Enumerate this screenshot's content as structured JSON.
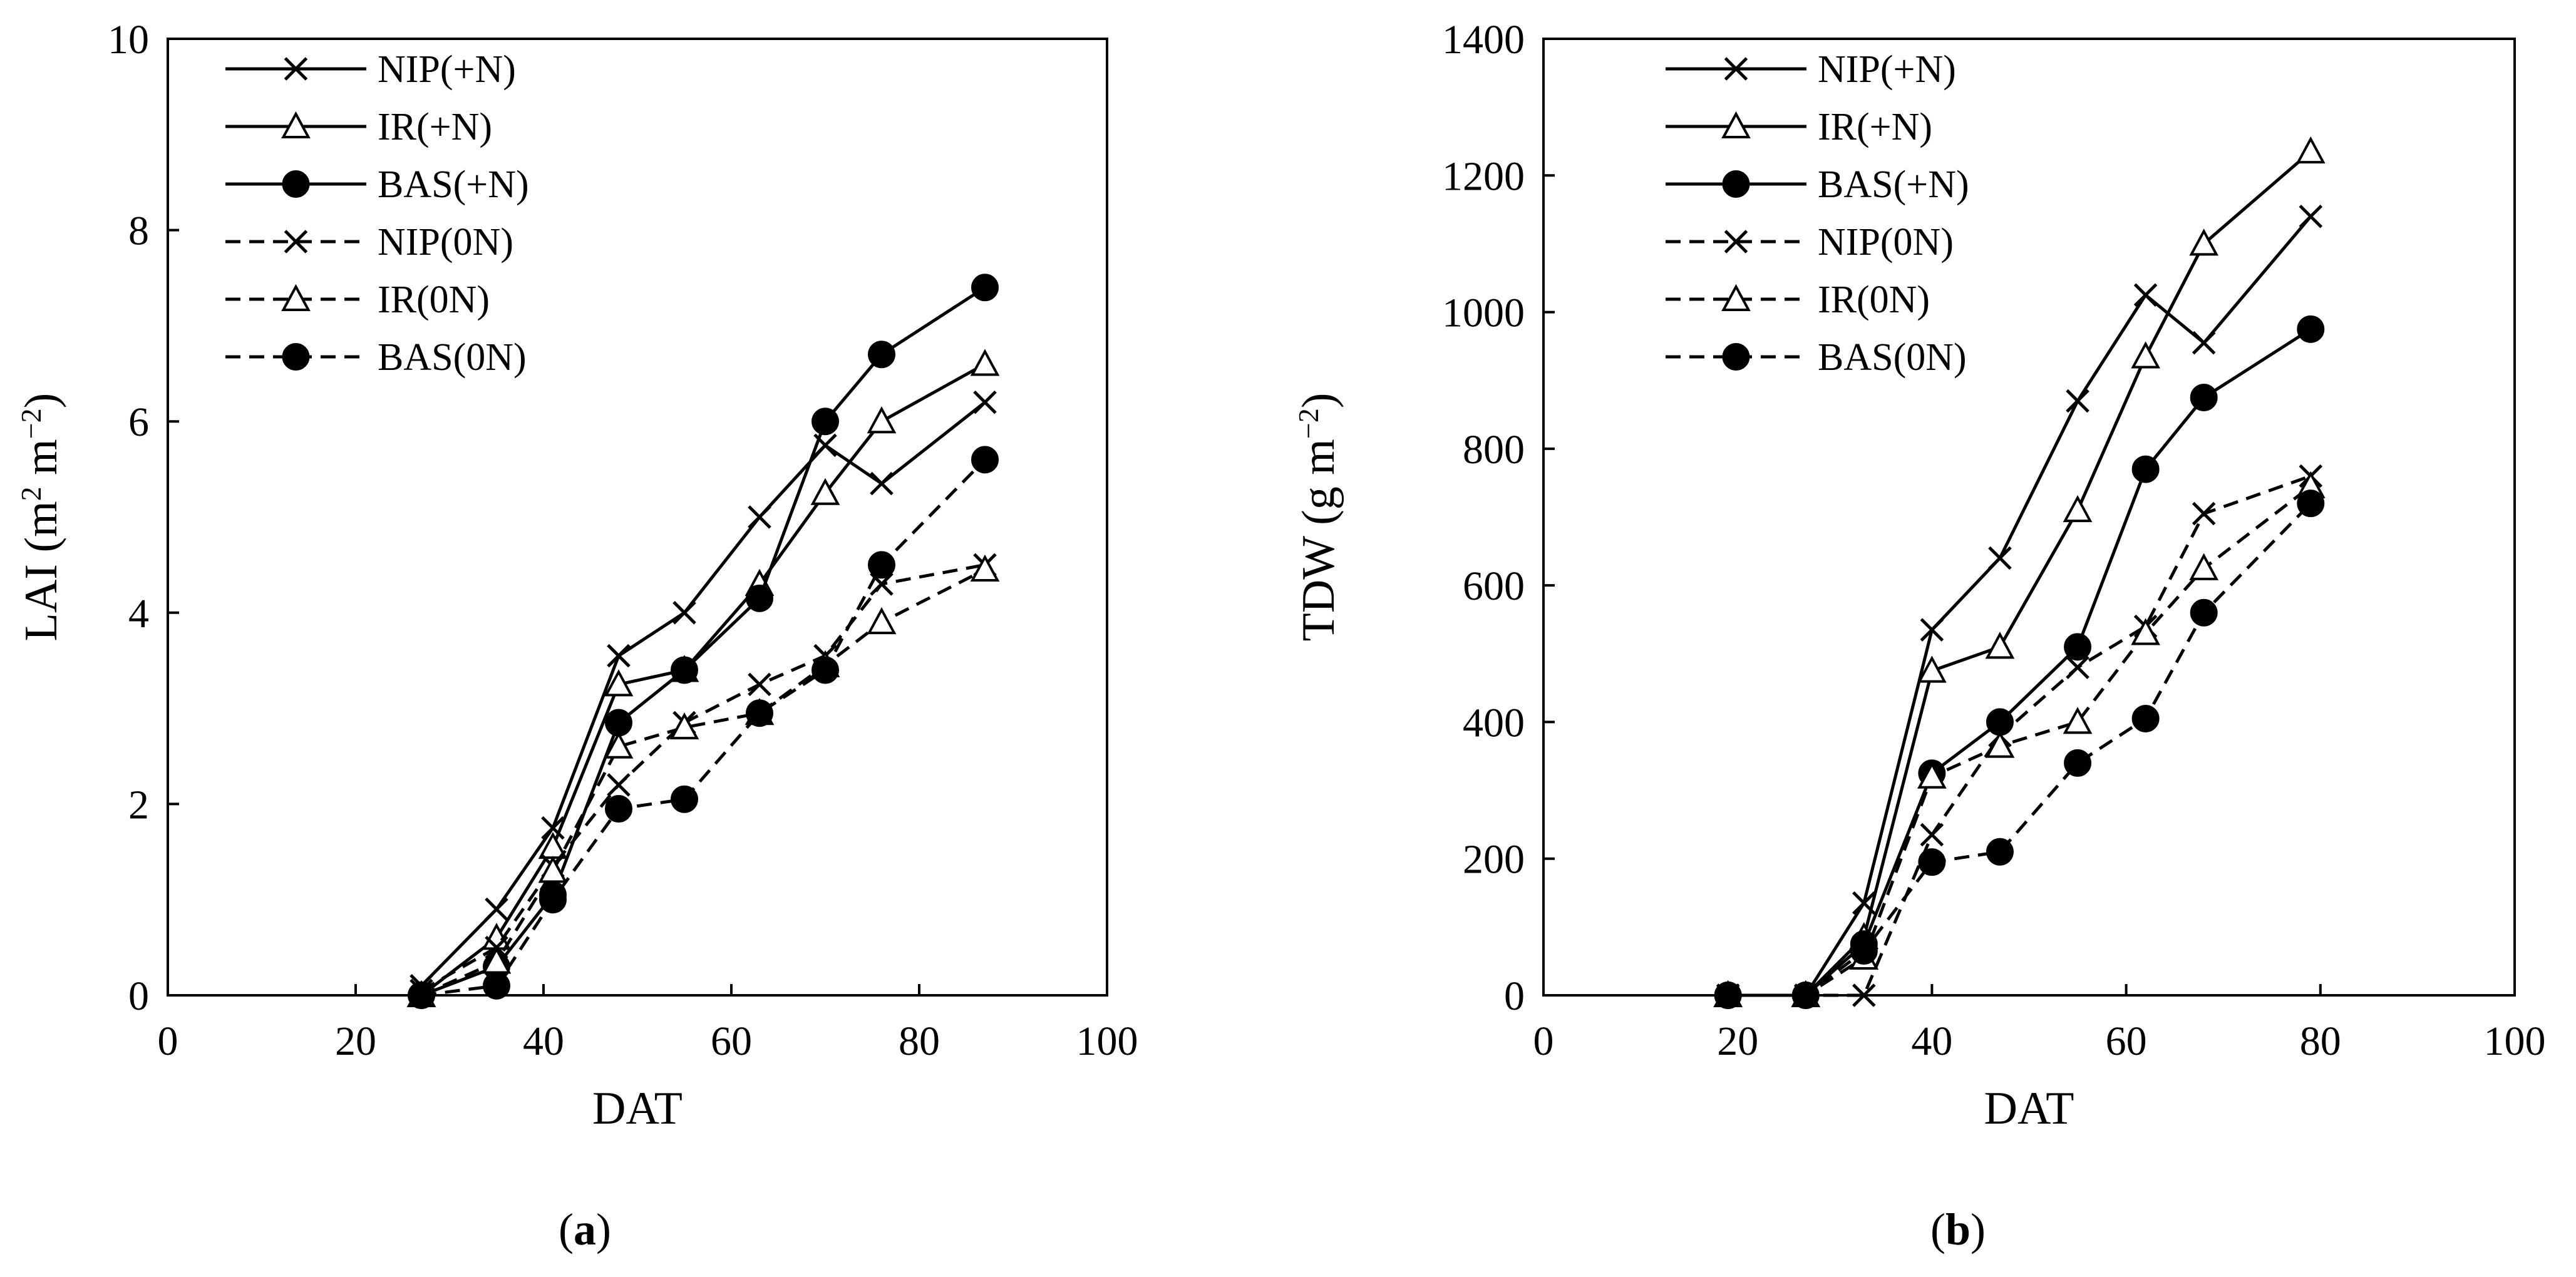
{
  "figure": {
    "panels": [
      {
        "label": "(a)",
        "label_letter": "a"
      },
      {
        "label": "(b)",
        "label_letter": "b"
      }
    ]
  },
  "chart_data": [
    {
      "type": "line",
      "panel": "(a)",
      "title": "",
      "xlabel": "DAT",
      "ylabel": "LAI (m² m⁻²)",
      "ylabel_parts": [
        "LAI (m",
        "2",
        " m",
        "−2",
        ")"
      ],
      "xlim": [
        0,
        100
      ],
      "ylim": [
        0,
        10
      ],
      "xticks": [
        0,
        20,
        40,
        60,
        80,
        100
      ],
      "yticks": [
        0,
        2,
        4,
        6,
        8,
        10
      ],
      "grid": false,
      "legend_position": "top-left",
      "series": [
        {
          "name": "NIP(+N)",
          "marker": "x",
          "dash": "solid",
          "x": [
            27,
            35,
            41,
            48,
            55,
            63,
            70,
            76,
            87
          ],
          "y": [
            0.1,
            0.9,
            1.75,
            3.55,
            4.0,
            5.0,
            5.75,
            5.35,
            6.2
          ]
        },
        {
          "name": "IR(+N)",
          "marker": "triangle",
          "dash": "solid",
          "x": [
            27,
            35,
            41,
            48,
            55,
            63,
            70,
            76,
            87
          ],
          "y": [
            0.0,
            0.6,
            1.55,
            3.25,
            3.4,
            4.3,
            5.25,
            6.0,
            6.6
          ]
        },
        {
          "name": "BAS(+N)",
          "marker": "circle",
          "dash": "solid",
          "x": [
            27,
            35,
            41,
            48,
            55,
            63,
            70,
            76,
            87
          ],
          "y": [
            0.0,
            0.3,
            1.05,
            2.85,
            3.4,
            4.15,
            6.0,
            6.7,
            7.4
          ]
        },
        {
          "name": "NIP(0N)",
          "marker": "x",
          "dash": "dashed",
          "x": [
            27,
            35,
            41,
            48,
            55,
            63,
            70,
            76,
            87
          ],
          "y": [
            0.05,
            0.5,
            1.35,
            2.2,
            2.85,
            3.25,
            3.55,
            4.3,
            4.5
          ]
        },
        {
          "name": "IR(0N)",
          "marker": "triangle",
          "dash": "dashed",
          "x": [
            27,
            35,
            41,
            48,
            55,
            63,
            70,
            76,
            87
          ],
          "y": [
            0.0,
            0.35,
            1.3,
            2.6,
            2.8,
            2.95,
            3.45,
            3.9,
            4.45
          ]
        },
        {
          "name": "BAS(0N)",
          "marker": "circle",
          "dash": "dashed",
          "x": [
            27,
            35,
            41,
            48,
            55,
            63,
            70,
            76,
            87
          ],
          "y": [
            0.0,
            0.1,
            1.0,
            1.95,
            2.05,
            2.95,
            3.4,
            4.5,
            5.6
          ]
        }
      ]
    },
    {
      "type": "line",
      "panel": "(b)",
      "title": "",
      "xlabel": "DAT",
      "ylabel": "TDW (g m⁻²)",
      "ylabel_parts": [
        "TDW (g m",
        "−2",
        ")"
      ],
      "xlim": [
        0,
        100
      ],
      "ylim": [
        0,
        1400
      ],
      "xticks": [
        0,
        20,
        40,
        60,
        80,
        100
      ],
      "yticks": [
        0,
        200,
        400,
        600,
        800,
        1000,
        1200,
        1400
      ],
      "grid": false,
      "legend_position": "top-left",
      "series": [
        {
          "name": "NIP(+N)",
          "marker": "x",
          "dash": "solid",
          "x": [
            19,
            27,
            33,
            40,
            47,
            55,
            62,
            68,
            79
          ],
          "y": [
            0,
            0,
            135,
            535,
            640,
            870,
            1025,
            955,
            1140
          ]
        },
        {
          "name": "IR(+N)",
          "marker": "triangle",
          "dash": "solid",
          "x": [
            19,
            27,
            33,
            40,
            47,
            55,
            62,
            68,
            79
          ],
          "y": [
            0,
            0,
            85,
            475,
            510,
            710,
            935,
            1100,
            1235
          ]
        },
        {
          "name": "BAS(+N)",
          "marker": "circle",
          "dash": "solid",
          "x": [
            19,
            27,
            33,
            40,
            47,
            55,
            62,
            68,
            79
          ],
          "y": [
            0,
            0,
            75,
            325,
            400,
            510,
            770,
            875,
            975
          ]
        },
        {
          "name": "NIP(0N)",
          "marker": "x",
          "dash": "dashed",
          "x": [
            19,
            27,
            33,
            40,
            47,
            55,
            62,
            68,
            79
          ],
          "y": [
            0,
            0,
            0,
            235,
            380,
            480,
            540,
            705,
            760
          ]
        },
        {
          "name": "IR(0N)",
          "marker": "triangle",
          "dash": "dashed",
          "x": [
            19,
            27,
            33,
            40,
            47,
            55,
            62,
            68,
            79
          ],
          "y": [
            0,
            0,
            55,
            320,
            365,
            400,
            530,
            625,
            745
          ]
        },
        {
          "name": "BAS(0N)",
          "marker": "circle",
          "dash": "dashed",
          "x": [
            19,
            27,
            33,
            40,
            47,
            55,
            62,
            68,
            79
          ],
          "y": [
            0,
            0,
            65,
            195,
            210,
            340,
            405,
            560,
            720
          ]
        }
      ]
    }
  ]
}
